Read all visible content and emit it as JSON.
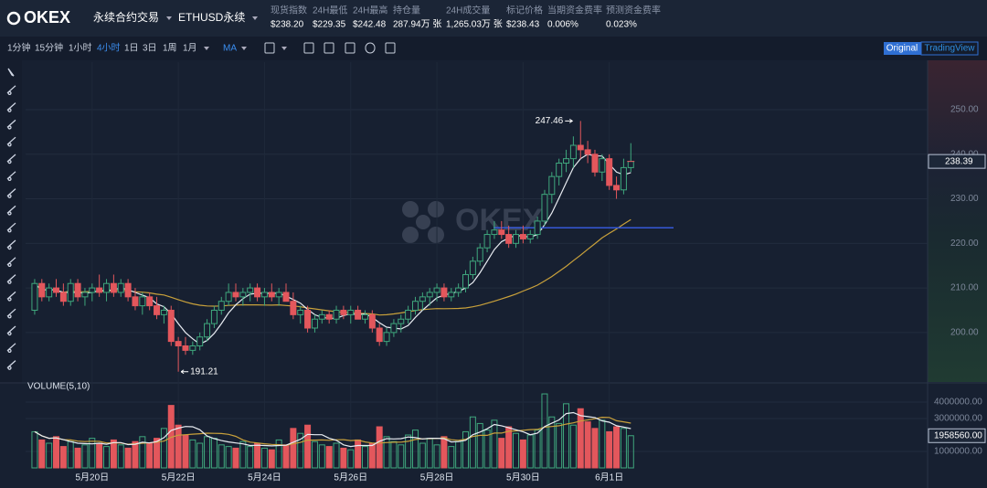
{
  "header": {
    "logo": "OKEX",
    "product": "永续合约交易",
    "instrument": "ETHUSD永续",
    "stats": [
      {
        "label": "现货指数",
        "value": "$238.20"
      },
      {
        "label": "24H最低",
        "value": "$229.35"
      },
      {
        "label": "24H最高",
        "value": "$242.48"
      },
      {
        "label": "持仓量",
        "value": "287.94万 张"
      },
      {
        "label": "24H成交量",
        "value": "1,265.03万 张"
      },
      {
        "label": "标记价格",
        "value": "$238.43"
      },
      {
        "label": "当期资金费率",
        "value": "0.006%"
      },
      {
        "label": "预测资金费率",
        "value": "0.023%"
      }
    ]
  },
  "toolbar": {
    "intervals": [
      "1分钟",
      "15分钟",
      "1小时",
      "4小时",
      "1日",
      "3日",
      "1周",
      "1月"
    ],
    "indicator": "MA",
    "views": [
      "Original",
      "TradingView"
    ]
  },
  "chart_data": {
    "type": "candlestick",
    "categories": [
      null,
      null,
      null,
      null,
      null,
      null,
      null,
      null,
      "5月20日",
      null,
      null,
      null,
      null,
      null,
      null,
      null,
      null,
      null,
      null,
      null,
      "5月22日",
      null,
      null,
      null,
      null,
      null,
      null,
      null,
      null,
      null,
      null,
      null,
      "5月24日",
      null,
      null,
      null,
      null,
      null,
      null,
      null,
      null,
      null,
      null,
      null,
      "5月26日",
      null,
      null,
      null,
      null,
      null,
      null,
      null,
      null,
      null,
      null,
      null,
      "5月28日",
      null,
      null,
      null,
      null,
      null,
      null,
      null,
      null,
      null,
      null,
      null,
      "5月30日",
      null,
      null,
      null,
      null,
      null,
      null,
      null,
      null,
      null,
      null,
      null,
      "6月1日",
      null,
      null,
      null
    ],
    "candles": [
      [
        205,
        212,
        204,
        211
      ],
      [
        211,
        212,
        207,
        208
      ],
      [
        208,
        211,
        207,
        210
      ],
      [
        210,
        212,
        208,
        209
      ],
      [
        209,
        211,
        206,
        207
      ],
      [
        207,
        212,
        206,
        211
      ],
      [
        211,
        212,
        207,
        208
      ],
      [
        208,
        210,
        206,
        209
      ],
      [
        209,
        211,
        207,
        210
      ],
      [
        210,
        213,
        208,
        209
      ],
      [
        209,
        212,
        207,
        211
      ],
      [
        211,
        213,
        208,
        209
      ],
      [
        209,
        212,
        208,
        211
      ],
      [
        211,
        212,
        207,
        208
      ],
      [
        208,
        210,
        205,
        206
      ],
      [
        206,
        209,
        204,
        208
      ],
      [
        208,
        209,
        205,
        206
      ],
      [
        206,
        208,
        203,
        204
      ],
      [
        204,
        206,
        202,
        205
      ],
      [
        205,
        206,
        197,
        198
      ],
      [
        198,
        199,
        191.21,
        197
      ],
      [
        197,
        199,
        195,
        196
      ],
      [
        196,
        198,
        195,
        197
      ],
      [
        197,
        200,
        196,
        199
      ],
      [
        199,
        203,
        198,
        202
      ],
      [
        202,
        206,
        201,
        205
      ],
      [
        205,
        208,
        204,
        207
      ],
      [
        207,
        211,
        206,
        209
      ],
      [
        209,
        211,
        207,
        208
      ],
      [
        208,
        210,
        206,
        209
      ],
      [
        209,
        211,
        207,
        210
      ],
      [
        210,
        211,
        207,
        208
      ],
      [
        208,
        210,
        206,
        209
      ],
      [
        209,
        211,
        207,
        208
      ],
      [
        208,
        210,
        206,
        209
      ],
      [
        209,
        211,
        207,
        207
      ],
      [
        207,
        209,
        203,
        204
      ],
      [
        204,
        206,
        202,
        205
      ],
      [
        205,
        206,
        200,
        201
      ],
      [
        201,
        204,
        200,
        203
      ],
      [
        203,
        205,
        202,
        204
      ],
      [
        204,
        205,
        202,
        203
      ],
      [
        203,
        206,
        202,
        205
      ],
      [
        205,
        206,
        203,
        204
      ],
      [
        204,
        206,
        202,
        205
      ],
      [
        205,
        206,
        203,
        203
      ],
      [
        203,
        205,
        202,
        204
      ],
      [
        204,
        205,
        200,
        201
      ],
      [
        201,
        202,
        197,
        198
      ],
      [
        198,
        201,
        197,
        200
      ],
      [
        200,
        203,
        199,
        202
      ],
      [
        202,
        204,
        200,
        203
      ],
      [
        203,
        206,
        202,
        205
      ],
      [
        205,
        208,
        204,
        207
      ],
      [
        207,
        209,
        205,
        208
      ],
      [
        208,
        210,
        206,
        209
      ],
      [
        209,
        211,
        207,
        210
      ],
      [
        210,
        211,
        207,
        208
      ],
      [
        208,
        210,
        207,
        209
      ],
      [
        209,
        211,
        208,
        210
      ],
      [
        210,
        214,
        209,
        213
      ],
      [
        213,
        217,
        212,
        216
      ],
      [
        216,
        220,
        215,
        219
      ],
      [
        219,
        223,
        218,
        222
      ],
      [
        222,
        225,
        221,
        223
      ],
      [
        223,
        225,
        221,
        222
      ],
      [
        222,
        224,
        219,
        220
      ],
      [
        220,
        223,
        219,
        222
      ],
      [
        222,
        224,
        220,
        221
      ],
      [
        221,
        223,
        220,
        222
      ],
      [
        222,
        226,
        221,
        225
      ],
      [
        225,
        232,
        224,
        231
      ],
      [
        231,
        236,
        229,
        235
      ],
      [
        235,
        239,
        233,
        238
      ],
      [
        238,
        241,
        236,
        239
      ],
      [
        239,
        244,
        237,
        242
      ],
      [
        242,
        247.46,
        239,
        241
      ],
      [
        241,
        243,
        238,
        240
      ],
      [
        240,
        241,
        235,
        236
      ],
      [
        236,
        240,
        234,
        239
      ],
      [
        239,
        240,
        232,
        233
      ],
      [
        233,
        235,
        230,
        232
      ],
      [
        232,
        239,
        231,
        237
      ],
      [
        237,
        242.48,
        236,
        238.39
      ]
    ],
    "up_color": "#3fa77d",
    "down_color": "#e3575c",
    "ylim": [
      188.9,
      258.2
    ],
    "yticks": [
      {
        "value": 200,
        "label": "200.00"
      },
      {
        "value": 210,
        "label": "210.00"
      },
      {
        "value": 220,
        "label": "220.00"
      },
      {
        "value": 230,
        "label": "230.00"
      },
      {
        "value": 240,
        "label": "240.00"
      },
      {
        "value": 250,
        "label": "250.00"
      }
    ],
    "grid": true,
    "horizontal_line": 223.5,
    "volume": {
      "title": "VOLUME(5,10)",
      "values": [
        2200000,
        1700000,
        1500000,
        1900000,
        1300000,
        1600000,
        1200000,
        1400000,
        1800000,
        1500000,
        1300000,
        1700000,
        1400000,
        1200000,
        1600000,
        1900000,
        1500000,
        1800000,
        2400000,
        3800000,
        2600000,
        2000000,
        1700000,
        1500000,
        1900000,
        1800000,
        1400000,
        1300000,
        1200000,
        1600000,
        1300000,
        1500000,
        1200000,
        1100000,
        1700000,
        1400000,
        2400000,
        2100000,
        2600000,
        1600000,
        1400000,
        1300000,
        1500000,
        1200000,
        1100000,
        1700000,
        1300000,
        1500000,
        2500000,
        1900000,
        1600000,
        1400000,
        2000000,
        2300000,
        1500000,
        1800000,
        1400000,
        1900000,
        1300000,
        1600000,
        2200000,
        3100000,
        2700000,
        2300000,
        2900000,
        1800000,
        2500000,
        2100000,
        1700000,
        2000000,
        2300000,
        4500000,
        3100000,
        2700000,
        3900000,
        2600000,
        3600000,
        2800000,
        2400000,
        2900000,
        2200000,
        2500000,
        2400000,
        1958560
      ],
      "ylim": [
        0,
        4780000
      ],
      "yticks": [
        {
          "value": 1000000,
          "label": "1000000.00"
        },
        {
          "value": 3000000,
          "label": "3000000.00"
        },
        {
          "value": 4000000,
          "label": "4000000.00"
        }
      ],
      "last_label": "1958560.00"
    }
  }
}
